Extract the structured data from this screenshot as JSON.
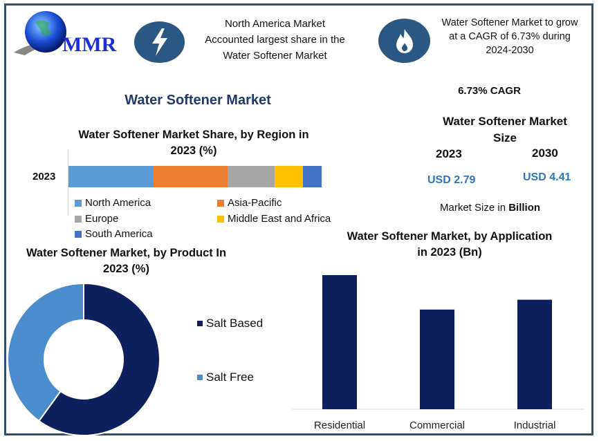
{
  "logo": {
    "text": "MMR"
  },
  "header": {
    "info1": {
      "icon": "lightning-bolt-icon",
      "lines": [
        "North America Market",
        "Accounted largest share in the",
        "Water Softener Market"
      ]
    },
    "info2": {
      "icon": "flame-icon",
      "lines": [
        "Water Softener Market to grow",
        "at a CAGR of 6.73% during",
        "2024-2030"
      ]
    }
  },
  "main_title": "Water Softener Market",
  "market_size": {
    "cagr": "6.73% CAGR",
    "title_lines": [
      "Water Softener Market",
      "Size"
    ],
    "year1": "2023",
    "year2": "2030",
    "value1": "USD 2.79",
    "value2": "USD 4.41",
    "note_prefix": "Market Size in ",
    "note_bold": "Billion"
  },
  "colors": {
    "frame": "#2e4f6e",
    "icon_bg": "#2a5883",
    "accent": "#2e75b6",
    "title": "#1f3a66"
  },
  "chart_data": [
    {
      "type": "bar",
      "orientation": "horizontal-stacked",
      "title_lines": [
        "Water Softener Market Share, by Region in",
        "2023 (%)"
      ],
      "categories": [
        "2023"
      ],
      "series": [
        {
          "name": "North America",
          "values": [
            33.6
          ],
          "color": "#5b9bd5"
        },
        {
          "name": "Asia-Pacific",
          "values": [
            29.2
          ],
          "color": "#ed7d31"
        },
        {
          "name": "Europe",
          "values": [
            18.6
          ],
          "color": "#a5a5a5"
        },
        {
          "name": "Middle East and Africa",
          "values": [
            11.2
          ],
          "color": "#ffc000"
        },
        {
          "name": "South America",
          "values": [
            7.4
          ],
          "color": "#4472c4"
        }
      ],
      "legend": "bottom"
    },
    {
      "type": "pie",
      "subtype": "donut",
      "title_lines": [
        "Water Softener Market, by Product In",
        "2023 (%)"
      ],
      "labels": [
        "Salt Based",
        "Salt Free"
      ],
      "values": [
        60,
        40
      ],
      "colors": [
        "#0d1f5c",
        "#4a8ccc"
      ],
      "legend": "right"
    },
    {
      "type": "bar",
      "title_lines": [
        "Water Softener Market, by Application",
        "in 2023 (Bn)"
      ],
      "categories": [
        "Residential",
        "Commercial",
        "Industrial"
      ],
      "values": [
        1.09,
        0.81,
        0.89
      ],
      "color": "#0d1f5c",
      "grid": false
    }
  ]
}
